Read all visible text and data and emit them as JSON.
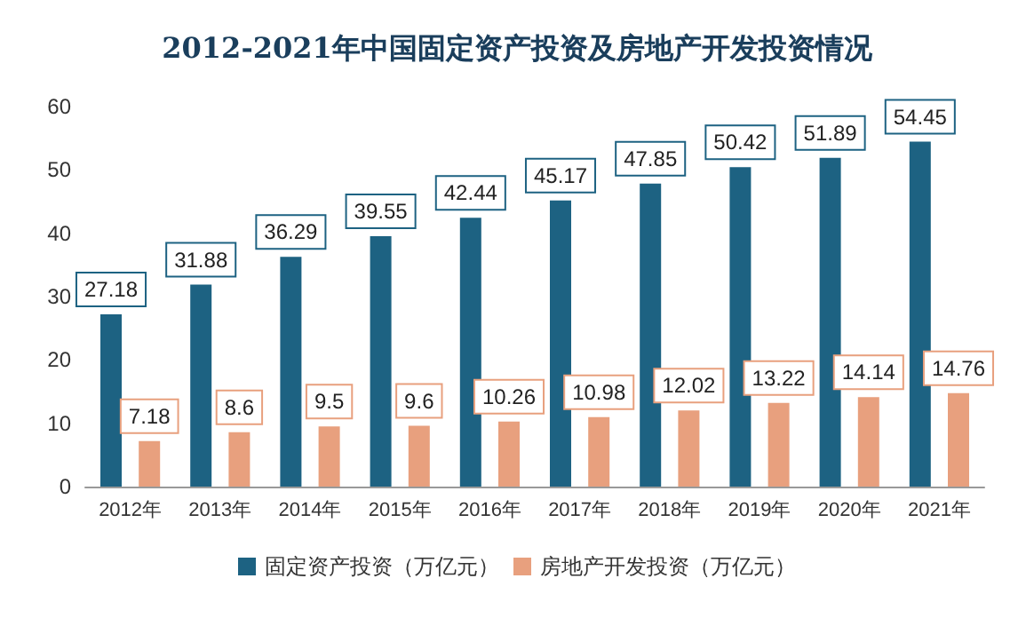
{
  "chart_data": {
    "type": "bar",
    "title": "2012-2021年中国固定资产投资及房地产开发投资情况",
    "categories": [
      "2012年",
      "2013年",
      "2014年",
      "2015年",
      "2016年",
      "2017年",
      "2018年",
      "2019年",
      "2020年",
      "2021年"
    ],
    "series": [
      {
        "name": "固定资产投资（万亿元）",
        "color": "#1d6282",
        "values": [
          27.18,
          31.88,
          36.29,
          39.55,
          42.44,
          45.17,
          47.85,
          50.42,
          51.89,
          54.45
        ]
      },
      {
        "name": "房地产开发投资（万亿元）",
        "color": "#e8a07e",
        "values": [
          7.18,
          8.6,
          9.5,
          9.6,
          10.26,
          10.98,
          12.02,
          13.22,
          14.14,
          14.76
        ]
      }
    ],
    "ylim": [
      0,
      60
    ],
    "yticks": [
      0,
      10,
      20,
      30,
      40,
      50,
      60
    ],
    "grid": false,
    "legend": "bottom",
    "data_labels": true
  }
}
